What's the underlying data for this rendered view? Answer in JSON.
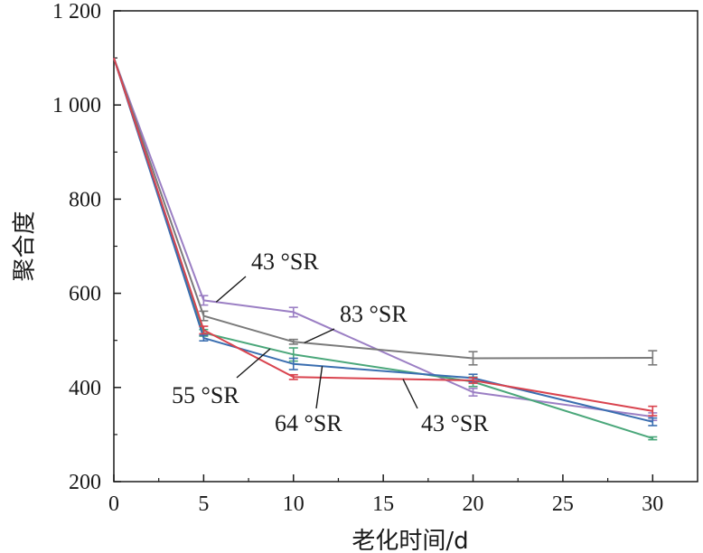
{
  "chart_data": {
    "type": "line",
    "xlabel": "老化时间/d",
    "ylabel": "聚合度",
    "xlim": [
      0,
      32.5
    ],
    "ylim": [
      200,
      1200
    ],
    "xticks": [
      0,
      5,
      10,
      15,
      20,
      25,
      30
    ],
    "yticks": [
      200,
      400,
      600,
      800,
      1000,
      1200
    ],
    "x_tick_labels": [
      "0",
      "5",
      "10",
      "15",
      "20",
      "25",
      "30"
    ],
    "y_tick_labels": [
      "200",
      "400",
      "600",
      "800",
      "1 000",
      "1 200"
    ],
    "x": [
      0,
      5,
      10,
      20,
      30
    ],
    "series": [
      {
        "name": "43 °SR",
        "color": "#9b7fc4",
        "values": [
          1100,
          585,
          560,
          390,
          338
        ],
        "errors": [
          0,
          10,
          10,
          8,
          8
        ]
      },
      {
        "name": "83 °SR",
        "color": "#7a7a7a",
        "values": [
          1100,
          552,
          497,
          462,
          463
        ],
        "errors": [
          0,
          10,
          5,
          14,
          15
        ]
      },
      {
        "name": "55 °SR",
        "color": "#4aa77a",
        "values": [
          1100,
          516,
          470,
          412,
          292
        ],
        "errors": [
          0,
          7,
          14,
          10,
          3
        ]
      },
      {
        "name": "64 °SR",
        "color": "#3a6eb0",
        "values": [
          1100,
          505,
          450,
          420,
          327
        ],
        "errors": [
          0,
          6,
          12,
          8,
          8
        ]
      },
      {
        "name": "43 °SR",
        "color": "#d9434e",
        "values": [
          1100,
          522,
          422,
          415,
          350
        ],
        "errors": [
          0,
          8,
          5,
          6,
          10
        ]
      }
    ],
    "annotations": [
      {
        "text": "43 °SR",
        "series": 0
      },
      {
        "text": "83 °SR",
        "series": 1
      },
      {
        "text": "55 °SR",
        "series": 2
      },
      {
        "text": "64 °SR",
        "series": 3
      },
      {
        "text": "43 °SR",
        "series": 4
      }
    ],
    "grid": false,
    "legend": "none"
  }
}
